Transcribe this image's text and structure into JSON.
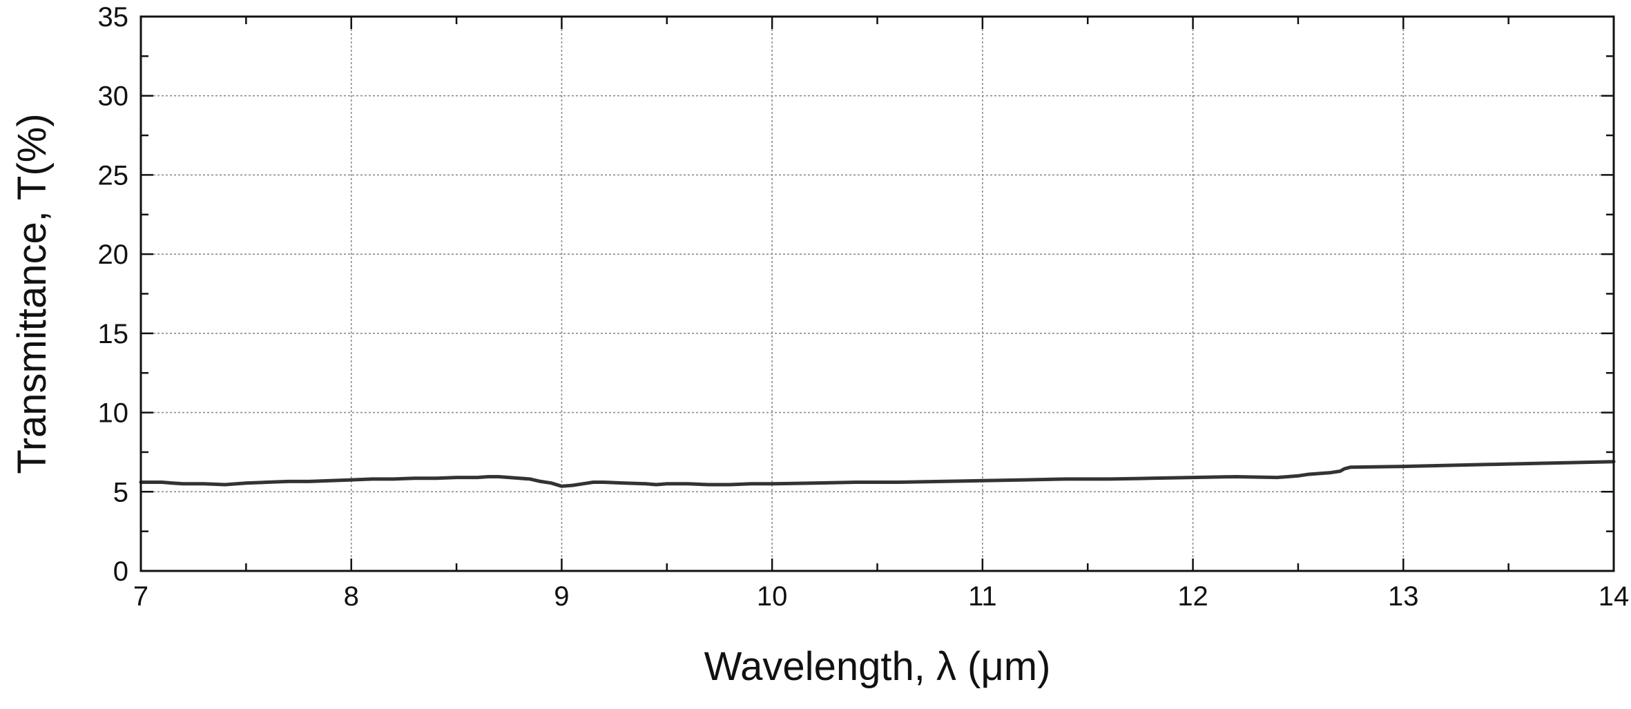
{
  "chart_data": {
    "type": "line",
    "title": "",
    "xlabel": "Wavelength, λ (μm)",
    "ylabel": "Transmittance, T(%)",
    "xlim": [
      7,
      14
    ],
    "ylim": [
      0,
      35
    ],
    "x_ticks": [
      7,
      8,
      9,
      10,
      11,
      12,
      13,
      14
    ],
    "y_ticks": [
      0,
      5,
      10,
      15,
      20,
      25,
      30,
      35
    ],
    "x_tick_labels": [
      "7",
      "8",
      "9",
      "10",
      "11",
      "12",
      "13",
      "14"
    ],
    "y_tick_labels": [
      "0",
      "5",
      "10",
      "15",
      "20",
      "25",
      "30",
      "35"
    ],
    "grid": true,
    "line_color": "#333333",
    "series": [
      {
        "x": [
          7.0,
          7.1,
          7.15,
          7.2,
          7.3,
          7.4,
          7.5,
          7.6,
          7.7,
          7.8,
          7.9,
          8.0,
          8.1,
          8.2,
          8.3,
          8.4,
          8.5,
          8.6,
          8.65,
          8.7,
          8.75,
          8.8,
          8.85,
          8.9,
          8.95,
          9.0,
          9.05,
          9.1,
          9.15,
          9.2,
          9.3,
          9.4,
          9.45,
          9.5,
          9.6,
          9.7,
          9.8,
          9.9,
          10.0,
          10.2,
          10.4,
          10.6,
          10.8,
          11.0,
          11.2,
          11.4,
          11.6,
          11.8,
          12.0,
          12.2,
          12.4,
          12.45,
          12.5,
          12.55,
          12.6,
          12.65,
          12.7,
          12.72,
          12.75,
          13.0,
          13.5,
          14.0
        ],
        "values": [
          5.6,
          5.6,
          5.55,
          5.5,
          5.5,
          5.45,
          5.55,
          5.6,
          5.65,
          5.65,
          5.7,
          5.75,
          5.8,
          5.8,
          5.85,
          5.85,
          5.9,
          5.9,
          5.95,
          5.95,
          5.9,
          5.85,
          5.8,
          5.65,
          5.55,
          5.35,
          5.4,
          5.5,
          5.6,
          5.6,
          5.55,
          5.5,
          5.45,
          5.5,
          5.5,
          5.45,
          5.45,
          5.5,
          5.5,
          5.55,
          5.6,
          5.6,
          5.65,
          5.7,
          5.75,
          5.8,
          5.8,
          5.85,
          5.9,
          5.95,
          5.9,
          5.95,
          6.0,
          6.1,
          6.15,
          6.2,
          6.3,
          6.45,
          6.55,
          6.6,
          6.75,
          6.9
        ]
      }
    ]
  }
}
